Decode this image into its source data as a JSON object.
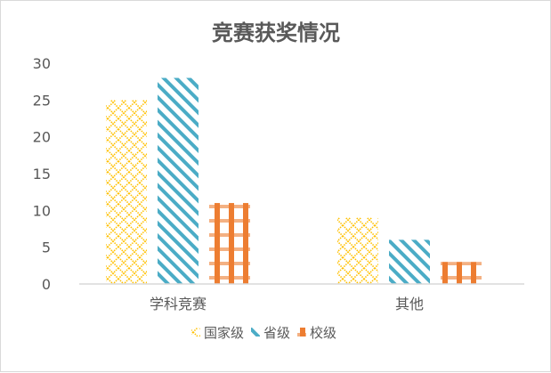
{
  "chart_data": {
    "type": "bar",
    "title": "竞赛获奖情况",
    "categories": [
      "学科竞赛",
      "其他"
    ],
    "series": [
      {
        "name": "国家级",
        "values": [
          25,
          9
        ],
        "color": "#FFC000",
        "pattern": "diamond-lattice"
      },
      {
        "name": "省级",
        "values": [
          28,
          6
        ],
        "color": "#4BACC6",
        "pattern": "diagonal-stripes"
      },
      {
        "name": "校级",
        "values": [
          11,
          3
        ],
        "color": "#ED7D31",
        "pattern": "plaid"
      }
    ],
    "ylim": [
      0,
      30
    ],
    "yticks": [
      0,
      5,
      10,
      15,
      20,
      25,
      30
    ],
    "grid": false,
    "legend": "bottom"
  }
}
